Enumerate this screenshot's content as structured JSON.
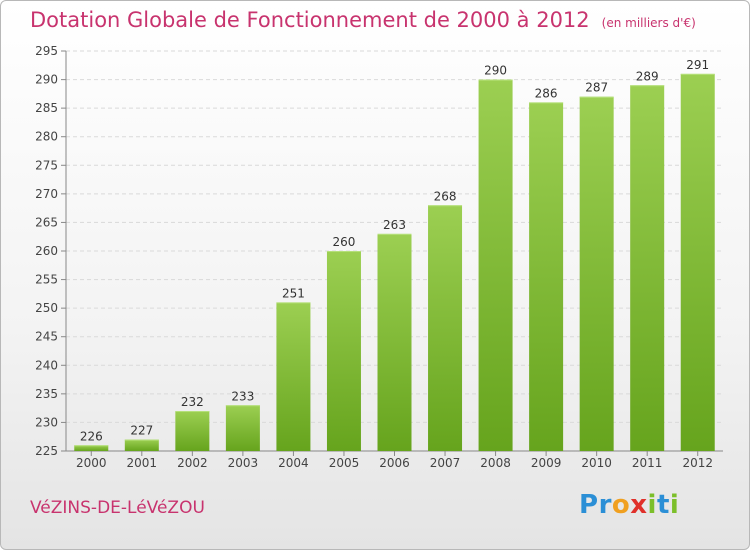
{
  "chart_data": {
    "type": "bar",
    "title": "Dotation Globale de Fonctionnement de 2000 à 2012",
    "unit_label": "(en milliers d'€)",
    "categories": [
      "2000",
      "2001",
      "2002",
      "2003",
      "2004",
      "2005",
      "2006",
      "2007",
      "2008",
      "2009",
      "2010",
      "2011",
      "2012"
    ],
    "values": [
      226,
      227,
      232,
      233,
      251,
      260,
      263,
      268,
      290,
      286,
      287,
      289,
      291
    ],
    "ylim": [
      225,
      295
    ],
    "yticks": [
      225,
      230,
      235,
      240,
      245,
      250,
      255,
      260,
      265,
      270,
      275,
      280,
      285,
      290,
      295
    ],
    "grid": true,
    "bar_color_top": "#9ccf52",
    "bar_color_bottom": "#66a41d"
  },
  "commune": "VéZINS-DE-LéVéZOU",
  "logo": {
    "letters": [
      "P",
      "r",
      "o",
      "x",
      "i",
      "t",
      "i"
    ],
    "colors": [
      "#2b8fd6",
      "#2b8fd6",
      "#f0a020",
      "#e0302a",
      "#7cbf2a",
      "#2b8fd6",
      "#7cbf2a"
    ]
  }
}
